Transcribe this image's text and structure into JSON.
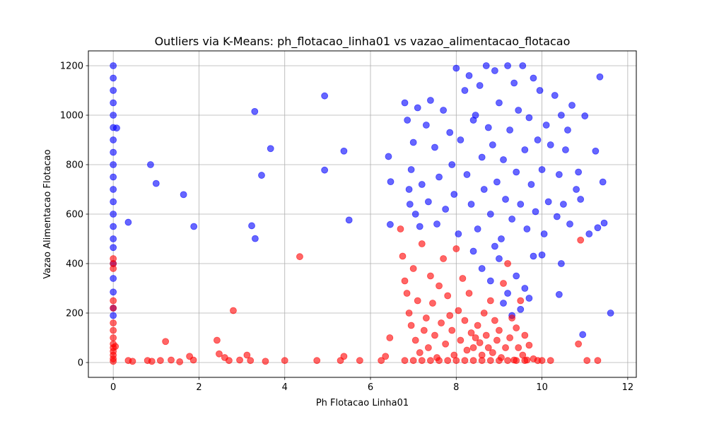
{
  "chart_data": {
    "type": "scatter",
    "title": "Outliers via K-Means: ph_flotacao_linha01 vs vazao_alimentacao_flotacao",
    "xlabel": "Ph Flotacao Linha01",
    "ylabel": "Vazao Alimentacao Flotacao",
    "xlim": [
      -0.58,
      12.2
    ],
    "ylim": [
      -60,
      1260
    ],
    "xticks": [
      0,
      2,
      4,
      6,
      8,
      10,
      12
    ],
    "yticks": [
      0,
      200,
      400,
      600,
      800,
      1000,
      1200
    ],
    "grid": true,
    "series": [
      {
        "color": "#0000ff",
        "points": [
          [
            0,
            1200
          ],
          [
            0,
            1150
          ],
          [
            0,
            1100
          ],
          [
            0,
            1050
          ],
          [
            0,
            1000
          ],
          [
            0,
            950
          ],
          [
            0,
            900
          ],
          [
            0,
            850
          ],
          [
            0,
            800
          ],
          [
            0,
            750
          ],
          [
            0,
            700
          ],
          [
            0,
            650
          ],
          [
            0,
            600
          ],
          [
            0,
            550
          ],
          [
            0,
            500
          ],
          [
            0,
            465
          ],
          [
            0,
            400
          ],
          [
            0,
            340
          ],
          [
            0,
            285
          ],
          [
            0,
            220
          ],
          [
            0,
            190
          ],
          [
            0.08,
            948
          ],
          [
            0.35,
            567
          ],
          [
            0.87,
            800
          ],
          [
            1.0,
            724
          ],
          [
            1.64,
            679
          ],
          [
            1.88,
            550
          ],
          [
            3.23,
            553
          ],
          [
            3.3,
            1015
          ],
          [
            3.31,
            501
          ],
          [
            3.46,
            757
          ],
          [
            3.67,
            865
          ],
          [
            4.93,
            1078
          ],
          [
            4.93,
            778
          ],
          [
            5.38,
            855
          ],
          [
            5.5,
            576
          ],
          [
            6.42,
            833
          ],
          [
            6.46,
            558
          ],
          [
            6.47,
            731
          ],
          [
            6.8,
            1050
          ],
          [
            6.86,
            980
          ],
          [
            6.9,
            700
          ],
          [
            6.92,
            640
          ],
          [
            6.95,
            780
          ],
          [
            7.0,
            890
          ],
          [
            7.05,
            600
          ],
          [
            7.1,
            1030
          ],
          [
            7.15,
            550
          ],
          [
            7.2,
            720
          ],
          [
            7.3,
            960
          ],
          [
            7.35,
            650
          ],
          [
            7.4,
            1060
          ],
          [
            7.5,
            870
          ],
          [
            7.55,
            560
          ],
          [
            7.6,
            750
          ],
          [
            7.7,
            1020
          ],
          [
            7.75,
            620
          ],
          [
            7.85,
            930
          ],
          [
            7.9,
            800
          ],
          [
            7.95,
            680
          ],
          [
            8.0,
            1190
          ],
          [
            8.05,
            520
          ],
          [
            8.1,
            900
          ],
          [
            8.2,
            1100
          ],
          [
            8.25,
            760
          ],
          [
            8.3,
            1160
          ],
          [
            8.35,
            640
          ],
          [
            8.4,
            980
          ],
          [
            8.45,
            1000
          ],
          [
            8.5,
            540
          ],
          [
            8.55,
            1120
          ],
          [
            8.6,
            830
          ],
          [
            8.65,
            700
          ],
          [
            8.7,
            1200
          ],
          [
            8.75,
            950
          ],
          [
            8.8,
            600
          ],
          [
            8.85,
            880
          ],
          [
            8.9,
            1180
          ],
          [
            8.95,
            730
          ],
          [
            9.0,
            1050
          ],
          [
            9.05,
            500
          ],
          [
            9.1,
            820
          ],
          [
            9.15,
            660
          ],
          [
            9.2,
            1200
          ],
          [
            9.25,
            940
          ],
          [
            9.3,
            580
          ],
          [
            9.35,
            1130
          ],
          [
            9.4,
            770
          ],
          [
            9.45,
            1020
          ],
          [
            9.5,
            640
          ],
          [
            9.55,
            1200
          ],
          [
            9.6,
            860
          ],
          [
            9.65,
            540
          ],
          [
            9.7,
            990
          ],
          [
            9.75,
            720
          ],
          [
            9.8,
            1150
          ],
          [
            9.85,
            610
          ],
          [
            9.9,
            900
          ],
          [
            9.95,
            1100
          ],
          [
            10.0,
            780
          ],
          [
            10.05,
            520
          ],
          [
            10.1,
            960
          ],
          [
            10.15,
            650
          ],
          [
            10.2,
            880
          ],
          [
            10.3,
            1080
          ],
          [
            10.35,
            590
          ],
          [
            10.4,
            760
          ],
          [
            10.45,
            1000
          ],
          [
            10.5,
            640
          ],
          [
            10.55,
            860
          ],
          [
            10.6,
            940
          ],
          [
            10.65,
            560
          ],
          [
            10.7,
            1040
          ],
          [
            10.8,
            700
          ],
          [
            10.85,
            770
          ],
          [
            10.9,
            660
          ],
          [
            11.0,
            997
          ],
          [
            11.1,
            520
          ],
          [
            11.25,
            855
          ],
          [
            11.3,
            545
          ],
          [
            11.35,
            1155
          ],
          [
            11.42,
            730
          ],
          [
            11.45,
            564
          ],
          [
            11.6,
            200
          ],
          [
            10.95,
            113
          ],
          [
            10.4,
            275
          ],
          [
            10.45,
            400
          ],
          [
            8.4,
            450
          ],
          [
            8.6,
            380
          ],
          [
            8.8,
            330
          ],
          [
            9.0,
            420
          ],
          [
            9.2,
            280
          ],
          [
            9.4,
            350
          ],
          [
            9.6,
            300
          ],
          [
            9.8,
            430
          ],
          [
            9.1,
            240
          ],
          [
            9.3,
            190
          ],
          [
            8.9,
            470
          ],
          [
            9.7,
            260
          ],
          [
            9.5,
            215
          ],
          [
            10.0,
            435
          ]
        ]
      },
      {
        "color": "#ff0000",
        "points": [
          [
            0,
            420
          ],
          [
            0,
            400
          ],
          [
            0,
            380
          ],
          [
            0,
            250
          ],
          [
            0,
            220
          ],
          [
            0,
            160
          ],
          [
            0,
            130
          ],
          [
            0,
            100
          ],
          [
            0,
            75
          ],
          [
            0,
            60
          ],
          [
            0,
            45
          ],
          [
            0,
            30
          ],
          [
            0,
            15
          ],
          [
            0,
            5
          ],
          [
            0.05,
            65
          ],
          [
            0.35,
            8
          ],
          [
            0.45,
            5
          ],
          [
            0.8,
            8
          ],
          [
            0.9,
            5
          ],
          [
            1.1,
            8
          ],
          [
            1.22,
            85
          ],
          [
            1.35,
            10
          ],
          [
            1.55,
            3
          ],
          [
            1.78,
            25
          ],
          [
            1.87,
            10
          ],
          [
            2.42,
            90
          ],
          [
            2.47,
            35
          ],
          [
            2.6,
            20
          ],
          [
            2.7,
            8
          ],
          [
            2.8,
            210
          ],
          [
            2.95,
            10
          ],
          [
            3.12,
            30
          ],
          [
            3.2,
            8
          ],
          [
            3.55,
            5
          ],
          [
            4.0,
            8
          ],
          [
            4.35,
            428
          ],
          [
            4.75,
            8
          ],
          [
            5.3,
            8
          ],
          [
            5.38,
            25
          ],
          [
            5.75,
            8
          ],
          [
            6.25,
            8
          ],
          [
            6.35,
            25
          ],
          [
            6.45,
            100
          ],
          [
            6.7,
            540
          ],
          [
            6.75,
            430
          ],
          [
            6.8,
            330
          ],
          [
            6.85,
            280
          ],
          [
            6.9,
            200
          ],
          [
            6.95,
            150
          ],
          [
            7.0,
            380
          ],
          [
            7.05,
            90
          ],
          [
            7.1,
            250
          ],
          [
            7.15,
            40
          ],
          [
            7.2,
            480
          ],
          [
            7.25,
            130
          ],
          [
            7.3,
            180
          ],
          [
            7.35,
            60
          ],
          [
            7.4,
            350
          ],
          [
            7.45,
            240
          ],
          [
            7.5,
            110
          ],
          [
            7.55,
            20
          ],
          [
            7.6,
            310
          ],
          [
            7.65,
            160
          ],
          [
            7.7,
            420
          ],
          [
            7.75,
            75
          ],
          [
            7.8,
            270
          ],
          [
            7.85,
            190
          ],
          [
            7.9,
            130
          ],
          [
            7.95,
            30
          ],
          [
            8.0,
            460
          ],
          [
            8.05,
            210
          ],
          [
            8.1,
            90
          ],
          [
            8.15,
            340
          ],
          [
            8.2,
            170
          ],
          [
            8.25,
            50
          ],
          [
            8.3,
            280
          ],
          [
            8.35,
            120
          ],
          [
            8.4,
            60
          ],
          [
            8.45,
            100
          ],
          [
            8.5,
            150
          ],
          [
            8.55,
            80
          ],
          [
            8.6,
            30
          ],
          [
            8.65,
            200
          ],
          [
            8.7,
            110
          ],
          [
            8.75,
            60
          ],
          [
            8.8,
            250
          ],
          [
            8.85,
            40
          ],
          [
            8.9,
            170
          ],
          [
            8.95,
            90
          ],
          [
            9.0,
            130
          ],
          [
            9.05,
            20
          ],
          [
            9.1,
            320
          ],
          [
            9.15,
            60
          ],
          [
            9.2,
            400
          ],
          [
            9.25,
            100
          ],
          [
            9.3,
            180
          ],
          [
            9.35,
            10
          ],
          [
            9.4,
            140
          ],
          [
            9.45,
            60
          ],
          [
            9.5,
            250
          ],
          [
            9.55,
            30
          ],
          [
            9.6,
            110
          ],
          [
            9.65,
            10
          ],
          [
            9.7,
            70
          ],
          [
            9.8,
            15
          ],
          [
            9.9,
            8
          ],
          [
            10.0,
            8
          ],
          [
            10.2,
            8
          ],
          [
            10.85,
            75
          ],
          [
            10.9,
            495
          ],
          [
            11.05,
            8
          ],
          [
            11.3,
            8
          ],
          [
            6.8,
            8
          ],
          [
            7.0,
            8
          ],
          [
            7.2,
            8
          ],
          [
            7.4,
            8
          ],
          [
            7.6,
            8
          ],
          [
            7.8,
            8
          ],
          [
            8.0,
            8
          ],
          [
            8.2,
            8
          ],
          [
            8.4,
            8
          ],
          [
            8.6,
            8
          ],
          [
            8.8,
            8
          ],
          [
            9.0,
            8
          ],
          [
            9.2,
            8
          ],
          [
            9.4,
            8
          ],
          [
            9.6,
            8
          ]
        ]
      }
    ]
  }
}
